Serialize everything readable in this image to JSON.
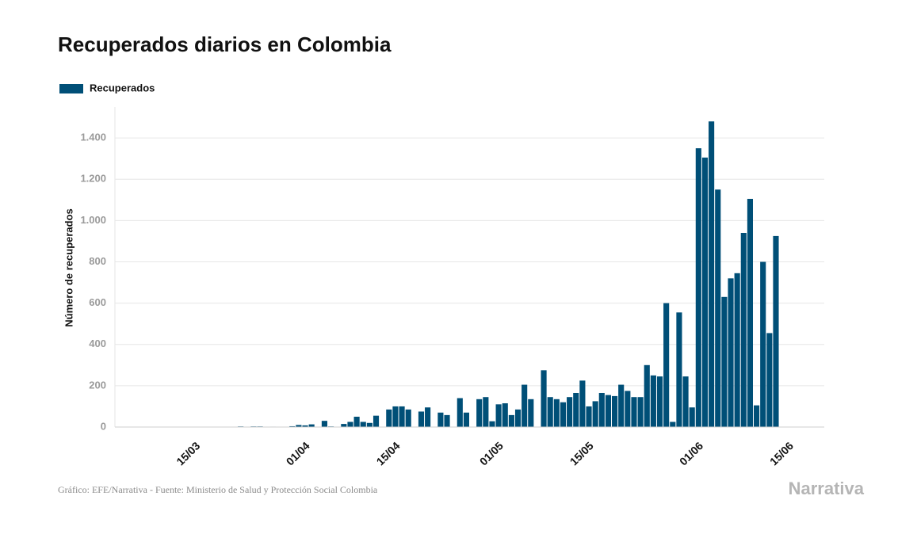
{
  "chart_data": {
    "type": "bar",
    "title": "Recuperados diarios en Colombia",
    "y_label": "Número de recuperados",
    "source": "Gráfico: EFE/Narrativa - Fuente: Ministerio de Salud y Protección Social Colombia",
    "logo": "Narrativa",
    "legend": "top-left",
    "grid": true,
    "categories": [
      null,
      null,
      null,
      null,
      null,
      null,
      null,
      null,
      null,
      null,
      null,
      null,
      "15/03",
      null,
      null,
      null,
      null,
      null,
      null,
      null,
      null,
      null,
      null,
      null,
      null,
      null,
      null,
      null,
      null,
      "01/04",
      null,
      null,
      null,
      null,
      null,
      null,
      null,
      null,
      null,
      null,
      null,
      null,
      null,
      "15/04",
      null,
      null,
      null,
      null,
      null,
      null,
      null,
      null,
      null,
      null,
      null,
      null,
      null,
      null,
      null,
      "01/05",
      null,
      null,
      null,
      null,
      null,
      null,
      null,
      null,
      null,
      null,
      null,
      null,
      null,
      "15/05",
      null,
      null,
      null,
      null,
      null,
      null,
      null,
      null,
      null,
      null,
      null,
      null,
      null,
      null,
      null,
      null,
      "01/06",
      null,
      null,
      null,
      null,
      null,
      null,
      null,
      null,
      null,
      null,
      null,
      null,
      null,
      "15/06",
      null,
      null,
      null,
      null,
      null
    ],
    "series": [
      {
        "name": "Recuperados",
        "color": "#004f77",
        "values": [
          null,
          null,
          null,
          null,
          1,
          1,
          1,
          1,
          1,
          1,
          1,
          1,
          1,
          1,
          1,
          1,
          1,
          1,
          1,
          3,
          null,
          3,
          3,
          null,
          2,
          null,
          null,
          4,
          10,
          8,
          13,
          null,
          30,
          3,
          null,
          15,
          25,
          50,
          25,
          20,
          55,
          null,
          85,
          100,
          100,
          85,
          null,
          75,
          95,
          null,
          70,
          58,
          null,
          140,
          70,
          null,
          135,
          145,
          28,
          110,
          115,
          58,
          85,
          205,
          135,
          null,
          275,
          145,
          135,
          120,
          145,
          165,
          225,
          100,
          125,
          165,
          155,
          150,
          205,
          175,
          145,
          145,
          300,
          250,
          245,
          600,
          25,
          555,
          245,
          95,
          1350,
          1305,
          1480,
          1150,
          630,
          720,
          745,
          940,
          1105,
          105,
          800,
          455,
          925,
          null,
          null,
          null,
          null,
          null,
          null,
          null
        ]
      }
    ],
    "ylim": [
      0,
      1550
    ],
    "yticks": [
      0,
      200,
      400,
      600,
      800,
      {
        "value": 1000,
        "label": "1.000"
      },
      {
        "value": 1200,
        "label": "1.200"
      },
      {
        "value": 1400,
        "label": "1.400"
      }
    ]
  }
}
